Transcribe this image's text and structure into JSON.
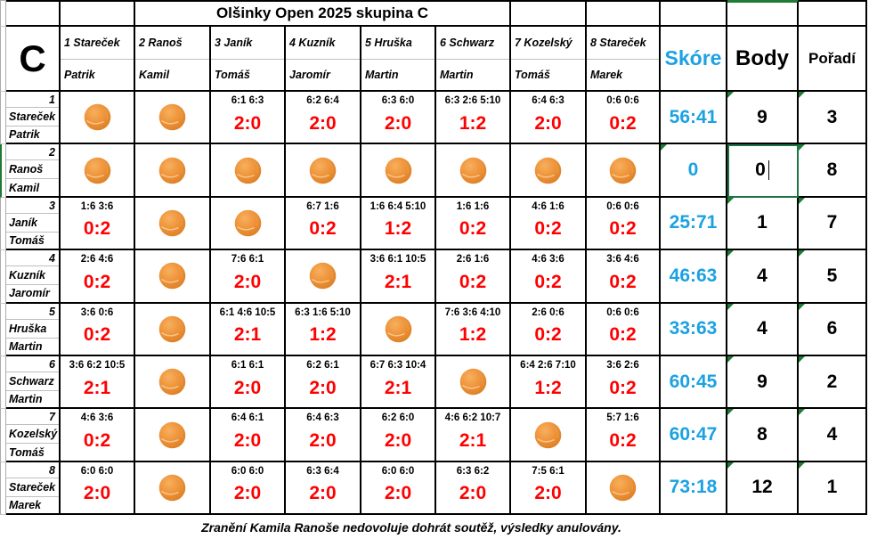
{
  "title": {
    "text": "Olšinky Open 2025 skupina C"
  },
  "group": {
    "letter": "C"
  },
  "summary_headers": {
    "score": "Skóre",
    "points": "Body",
    "rank": "Pořadí"
  },
  "players": [
    {
      "label": "1 Stareček",
      "firstname": "Patrik"
    },
    {
      "label": "2 Ranoš",
      "firstname": "Kamil"
    },
    {
      "label": "3 Janík",
      "firstname": "Tomáš"
    },
    {
      "label": "4 Kuzník",
      "firstname": "Jaromír"
    },
    {
      "label": "5 Hruška",
      "firstname": "Martin"
    },
    {
      "label": "6 Schwarz",
      "firstname": "Martin"
    },
    {
      "label": "7 Kozelský",
      "firstname": "Tomáš"
    },
    {
      "label": "8 Stareček",
      "firstname": "Marek"
    }
  ],
  "rows": [
    {
      "num": "1",
      "surname": "Stareček",
      "firstname": "Patrik",
      "cells": [
        {
          "ball": true
        },
        {
          "ball": true
        },
        {
          "sets": "6:1 6:3",
          "result": "2:0"
        },
        {
          "sets": "6:2 6:4",
          "result": "2:0"
        },
        {
          "sets": "6:3 6:0",
          "result": "2:0"
        },
        {
          "sets": "6:3 2:6 5:10",
          "result": "1:2"
        },
        {
          "sets": "6:4 6:3",
          "result": "2:0"
        },
        {
          "sets": "0:6 0:6",
          "result": "0:2"
        }
      ],
      "score": "56:41",
      "points": "9",
      "rank": "3"
    },
    {
      "num": "2",
      "surname": "Ranoš",
      "firstname": "Kamil",
      "cells": [
        {
          "ball": true
        },
        {
          "ball": true
        },
        {
          "ball": true
        },
        {
          "ball": true
        },
        {
          "ball": true
        },
        {
          "ball": true
        },
        {
          "ball": true
        },
        {
          "ball": true
        }
      ],
      "score": "0",
      "points": "0",
      "rank": "8"
    },
    {
      "num": "3",
      "surname": "Janík",
      "firstname": "Tomáš",
      "cells": [
        {
          "sets": "1:6 3:6",
          "result": "0:2"
        },
        {
          "ball": true
        },
        {
          "ball": true
        },
        {
          "sets": "6:7 1:6",
          "result": "0:2"
        },
        {
          "sets": "1:6 6:4 5:10",
          "result": "1:2"
        },
        {
          "sets": "1:6 1:6",
          "result": "0:2"
        },
        {
          "sets": "4:6 1:6",
          "result": "0:2"
        },
        {
          "sets": "0:6 0:6",
          "result": "0:2"
        }
      ],
      "score": "25:71",
      "points": "1",
      "rank": "7"
    },
    {
      "num": "4",
      "surname": "Kuzník",
      "firstname": "Jaromír",
      "cells": [
        {
          "sets": "2:6 4:6",
          "result": "0:2"
        },
        {
          "ball": true
        },
        {
          "sets": "7:6 6:1",
          "result": "2:0"
        },
        {
          "ball": true
        },
        {
          "sets": "3:6 6:1 10:5",
          "result": "2:1"
        },
        {
          "sets": "2:6 1:6",
          "result": "0:2"
        },
        {
          "sets": "4:6 3:6",
          "result": "0:2"
        },
        {
          "sets": "3:6 4:6",
          "result": "0:2"
        }
      ],
      "score": "46:63",
      "points": "4",
      "rank": "5"
    },
    {
      "num": "5",
      "surname": "Hruška",
      "firstname": "Martin",
      "cells": [
        {
          "sets": "3:6 0:6",
          "result": "0:2"
        },
        {
          "ball": true
        },
        {
          "sets": "6:1 4:6 10:5",
          "result": "2:1"
        },
        {
          "sets": "6:3 1:6 5:10",
          "result": "1:2"
        },
        {
          "ball": true
        },
        {
          "sets": "7:6 3:6 4:10",
          "result": "1:2"
        },
        {
          "sets": "2:6 0:6",
          "result": "0:2"
        },
        {
          "sets": "0:6 0:6",
          "result": "0:2"
        }
      ],
      "score": "33:63",
      "points": "4",
      "rank": "6"
    },
    {
      "num": "6",
      "surname": "Schwarz",
      "firstname": "Martin",
      "cells": [
        {
          "sets": "3:6 6:2 10:5",
          "result": "2:1"
        },
        {
          "ball": true
        },
        {
          "sets": "6:1 6:1",
          "result": "2:0"
        },
        {
          "sets": "6:2 6:1",
          "result": "2:0"
        },
        {
          "sets": "6:7 6:3 10:4",
          "result": "2:1"
        },
        {
          "ball": true
        },
        {
          "sets": "6:4 2:6 7:10",
          "result": "1:2"
        },
        {
          "sets": "3:6 2:6",
          "result": "0:2"
        }
      ],
      "score": "60:45",
      "points": "9",
      "rank": "2"
    },
    {
      "num": "7",
      "surname": "Kozelský",
      "firstname": "Tomáš",
      "cells": [
        {
          "sets": "4:6 3:6",
          "result": "0:2"
        },
        {
          "ball": true
        },
        {
          "sets": "6:4 6:1",
          "result": "2:0"
        },
        {
          "sets": "6:4 6:3",
          "result": "2:0"
        },
        {
          "sets": "6:2 6:0",
          "result": "2:0"
        },
        {
          "sets": "4:6 6:2 10:7",
          "result": "2:1"
        },
        {
          "ball": true
        },
        {
          "sets": "5:7 1:6",
          "result": "0:2"
        }
      ],
      "score": "60:47",
      "points": "8",
      "rank": "4"
    },
    {
      "num": "8",
      "surname": "Stareček",
      "firstname": "Marek",
      "cells": [
        {
          "sets": "6:0 6:0",
          "result": "2:0"
        },
        {
          "ball": true
        },
        {
          "sets": "6:0 6:0",
          "result": "2:0"
        },
        {
          "sets": "6:3 6:4",
          "result": "2:0"
        },
        {
          "sets": "6:0 6:0",
          "result": "2:0"
        },
        {
          "sets": "6:3 6:2",
          "result": "2:0"
        },
        {
          "sets": "7:5 6:1",
          "result": "2:0"
        },
        {
          "ball": true
        }
      ],
      "score": "73:18",
      "points": "12",
      "rank": "1"
    }
  ],
  "editing_cell": {
    "row_number": "2",
    "column": "Body",
    "value": "0"
  },
  "footer": {
    "note": "Zranění Kamila Ranoše nedovoluje dohrát soutěž, výsledky anulovány."
  },
  "colors": {
    "result_red": "#FF0000",
    "score_blue": "#1BA2E2",
    "selection_green": "#1E7B34",
    "ball_orange": "#EF953C",
    "grid_black": "#000000",
    "subgrid_gray": "#BFBFBF"
  },
  "icons": {
    "diagonal_marker": "tennis-ball-icon",
    "cell_flag": "error-indicator-icon"
  }
}
